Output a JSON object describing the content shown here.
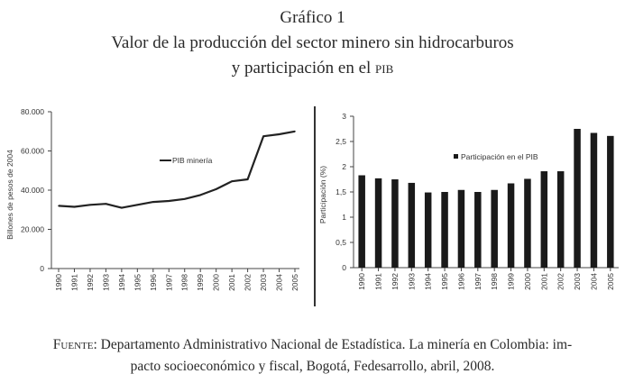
{
  "figure": {
    "label": "Gráfico 1",
    "title_line1": "Valor de la producción del sector minero sin hidrocarburos",
    "title_line2_prefix": "y participación en el ",
    "title_line2_abbr": "PIB"
  },
  "source": {
    "label": "Fuente:",
    "text_line1": "Departamento Administrativo Nacional de Estadística. La minería en Colombia: im-",
    "text_line2": "pacto socioeconómico y fiscal, Bogotá, Fedesarrollo, abril, 2008."
  },
  "chart_data": [
    {
      "type": "line",
      "title": "",
      "xlabel": "",
      "ylabel": "Billones de pesos de 2004",
      "x": [
        "1990",
        "1991",
        "1992",
        "1993",
        "1994",
        "1995",
        "1996",
        "1997",
        "1998",
        "1999",
        "2000",
        "2001",
        "2002",
        "2003",
        "2004",
        "2005"
      ],
      "yticks": [
        "0",
        "20.000",
        "40.000",
        "60.000",
        "80.000"
      ],
      "ylim": [
        0,
        80000
      ],
      "grid": false,
      "legend": "upper-center",
      "series": [
        {
          "name": "PIB minería",
          "values": [
            32000,
            31500,
            32500,
            33000,
            31000,
            32500,
            34000,
            34500,
            35500,
            37500,
            40500,
            44500,
            45500,
            67500,
            68500,
            70000
          ]
        }
      ],
      "color": "#222222"
    },
    {
      "type": "bar",
      "title": "",
      "xlabel": "",
      "ylabel": "Participación (%)",
      "categories": [
        "1990",
        "1991",
        "1992",
        "1993",
        "1994",
        "1995",
        "1996",
        "1997",
        "1998",
        "1999",
        "2000",
        "2001",
        "2002",
        "2003",
        "2004",
        "2005"
      ],
      "yticks": [
        "0",
        "0,5",
        "1",
        "1,5",
        "2",
        "2,5",
        "3"
      ],
      "ylim": [
        0,
        3
      ],
      "grid": false,
      "legend": "upper-center",
      "series": [
        {
          "name": "Participación en el PIB",
          "values": [
            1.83,
            1.77,
            1.75,
            1.68,
            1.49,
            1.5,
            1.54,
            1.5,
            1.54,
            1.67,
            1.76,
            1.91,
            1.91,
            2.75,
            2.67,
            2.61
          ]
        }
      ],
      "color": "#1a1a1a"
    }
  ]
}
